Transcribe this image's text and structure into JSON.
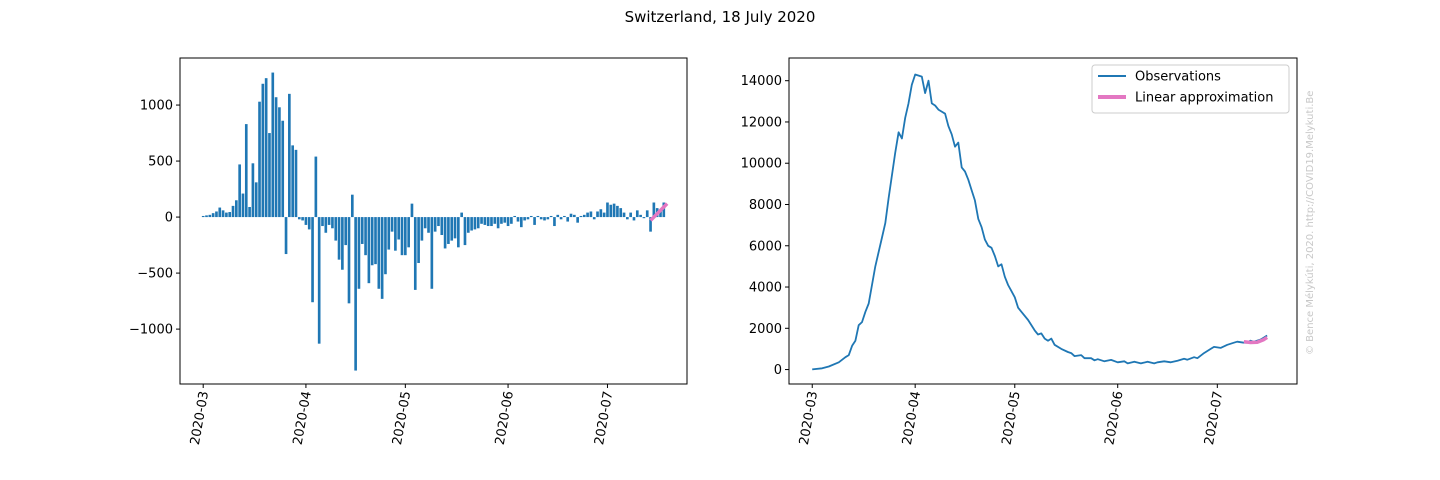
{
  "suptitle": "Switzerland, 18 July 2020",
  "credit": "© Bence Mélykúti, 2020. http://COVID19.Melykuti.Be",
  "colors": {
    "observations": "#1f77b4",
    "approximation": "#e377c2",
    "bars": "#1f77b4"
  },
  "chart_data": [
    {
      "type": "bar",
      "name": "daily-change",
      "x_start": "2020-03-01",
      "xticks": [
        "2020-03",
        "2020-04",
        "2020-05",
        "2020-06",
        "2020-07"
      ],
      "xtick_days": [
        0,
        31,
        61,
        92,
        122
      ],
      "xlim_days": [
        -7,
        146
      ],
      "ylim": [
        -1490,
        1420
      ],
      "yticks": [
        -1000,
        -500,
        0,
        500,
        1000
      ],
      "ytick_labels": [
        "−1000",
        "−500",
        "0",
        "500",
        "1000"
      ],
      "values": [
        10,
        15,
        20,
        35,
        50,
        85,
        60,
        40,
        45,
        100,
        150,
        470,
        210,
        830,
        90,
        480,
        310,
        1030,
        1190,
        1240,
        750,
        1290,
        1070,
        980,
        860,
        -330,
        1100,
        640,
        600,
        -20,
        -30,
        -70,
        -110,
        -760,
        540,
        -1130,
        -80,
        -140,
        -70,
        -100,
        -210,
        -380,
        -470,
        -250,
        -770,
        200,
        -1370,
        -640,
        -240,
        -340,
        -590,
        -430,
        -420,
        -640,
        -730,
        -510,
        -290,
        -130,
        -300,
        -200,
        -340,
        -340,
        -270,
        120,
        -650,
        -410,
        -210,
        -100,
        -140,
        -640,
        -130,
        -80,
        -160,
        -280,
        -240,
        -210,
        -190,
        -270,
        40,
        -250,
        -140,
        -120,
        -110,
        -100,
        -60,
        -70,
        -80,
        -80,
        -60,
        -100,
        -60,
        -50,
        -80,
        -60,
        10,
        -40,
        -90,
        -30,
        -20,
        10,
        -70,
        10,
        -20,
        -30,
        -20,
        10,
        -80,
        20,
        -20,
        10,
        -40,
        30,
        20,
        -50,
        10,
        20,
        40,
        50,
        -20,
        50,
        70,
        40,
        130,
        110,
        120,
        100,
        80,
        40,
        -20,
        40,
        -30,
        60,
        20,
        -10,
        60,
        -130,
        130,
        80,
        60,
        130
      ],
      "approximation": {
        "x_days": [
          135,
          140
        ],
        "values": [
          -30,
          120
        ]
      }
    },
    {
      "type": "line",
      "name": "active-cases",
      "x_start": "2020-03-01",
      "xticks": [
        "2020-03",
        "2020-04",
        "2020-05",
        "2020-06",
        "2020-07"
      ],
      "xtick_days": [
        0,
        31,
        61,
        92,
        122
      ],
      "xlim_days": [
        -7,
        146
      ],
      "ylim": [
        -700,
        15100
      ],
      "yticks": [
        0,
        2000,
        4000,
        6000,
        8000,
        10000,
        12000,
        14000
      ],
      "ytick_labels": [
        "0",
        "2000",
        "4000",
        "6000",
        "8000",
        "10000",
        "12000",
        "14000"
      ],
      "legend": {
        "position": "top-right",
        "entries": [
          "Observations",
          "Linear approximation"
        ]
      },
      "series": [
        {
          "name": "Observations",
          "points": [
            [
              0,
              10
            ],
            [
              3,
              60
            ],
            [
              5,
              150
            ],
            [
              8,
              350
            ],
            [
              10,
              600
            ],
            [
              11,
              700
            ],
            [
              12,
              1150
            ],
            [
              13,
              1400
            ],
            [
              14,
              2150
            ],
            [
              15,
              2300
            ],
            [
              16,
              2800
            ],
            [
              17,
              3200
            ],
            [
              19,
              5000
            ],
            [
              21,
              6400
            ],
            [
              22,
              7100
            ],
            [
              23,
              8300
            ],
            [
              25,
              10500
            ],
            [
              26,
              11500
            ],
            [
              27,
              11200
            ],
            [
              28,
              12200
            ],
            [
              29,
              12900
            ],
            [
              30,
              13800
            ],
            [
              31,
              14300
            ],
            [
              33,
              14200
            ],
            [
              34,
              13400
            ],
            [
              35,
              14000
            ],
            [
              36,
              12900
            ],
            [
              37,
              12800
            ],
            [
              38,
              12600
            ],
            [
              39,
              12500
            ],
            [
              40,
              12400
            ],
            [
              41,
              11800
            ],
            [
              42,
              11400
            ],
            [
              43,
              10800
            ],
            [
              44,
              11000
            ],
            [
              45,
              9800
            ],
            [
              46,
              9600
            ],
            [
              47,
              9200
            ],
            [
              48,
              8700
            ],
            [
              49,
              8200
            ],
            [
              50,
              7300
            ],
            [
              51,
              6900
            ],
            [
              52,
              6300
            ],
            [
              53,
              6000
            ],
            [
              54,
              5900
            ],
            [
              55,
              5500
            ],
            [
              56,
              5000
            ],
            [
              57,
              5100
            ],
            [
              58,
              4500
            ],
            [
              59,
              4100
            ],
            [
              60,
              3800
            ],
            [
              61,
              3500
            ],
            [
              62,
              3000
            ],
            [
              63,
              2800
            ],
            [
              65,
              2400
            ],
            [
              67,
              1900
            ],
            [
              68,
              1700
            ],
            [
              69,
              1750
            ],
            [
              70,
              1500
            ],
            [
              71,
              1400
            ],
            [
              72,
              1500
            ],
            [
              73,
              1200
            ],
            [
              75,
              1000
            ],
            [
              77,
              850
            ],
            [
              78,
              800
            ],
            [
              79,
              650
            ],
            [
              81,
              700
            ],
            [
              82,
              550
            ],
            [
              84,
              550
            ],
            [
              85,
              450
            ],
            [
              86,
              500
            ],
            [
              88,
              400
            ],
            [
              90,
              470
            ],
            [
              92,
              350
            ],
            [
              94,
              400
            ],
            [
              95,
              300
            ],
            [
              97,
              380
            ],
            [
              99,
              300
            ],
            [
              101,
              380
            ],
            [
              103,
              300
            ],
            [
              104,
              350
            ],
            [
              106,
              400
            ],
            [
              108,
              350
            ],
            [
              110,
              430
            ],
            [
              112,
              520
            ],
            [
              113,
              480
            ],
            [
              115,
              600
            ],
            [
              116,
              550
            ],
            [
              118,
              800
            ],
            [
              120,
              1000
            ],
            [
              121,
              1100
            ],
            [
              123,
              1050
            ],
            [
              125,
              1200
            ],
            [
              127,
              1300
            ],
            [
              128,
              1350
            ],
            [
              130,
              1300
            ],
            [
              131,
              1300
            ],
            [
              132,
              1400
            ],
            [
              133,
              1350
            ],
            [
              135,
              1450
            ],
            [
              136,
              1550
            ],
            [
              137,
              1650
            ]
          ]
        },
        {
          "name": "Linear approximation",
          "points": [
            [
              130,
              1350
            ],
            [
              132,
              1310
            ],
            [
              134,
              1320
            ],
            [
              136,
              1450
            ],
            [
              137,
              1560
            ]
          ]
        }
      ]
    }
  ]
}
